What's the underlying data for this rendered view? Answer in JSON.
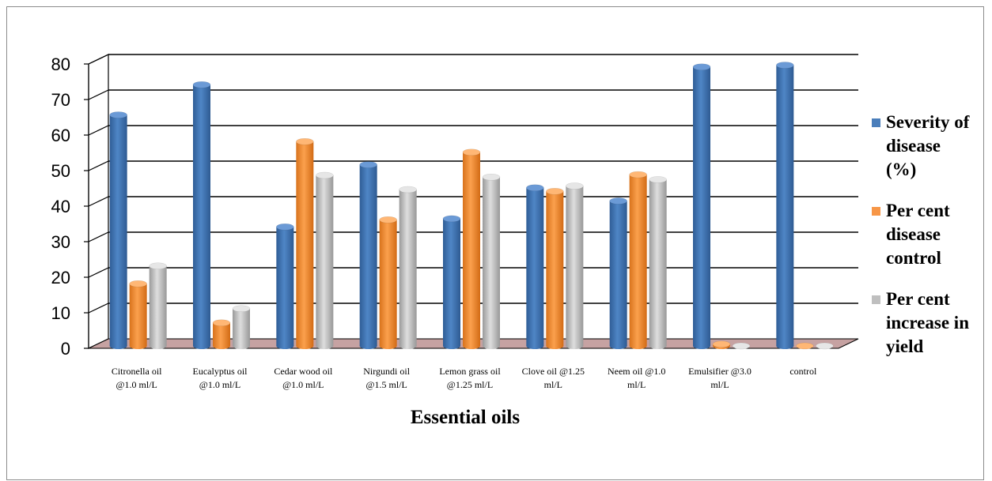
{
  "chart_data": {
    "type": "bar",
    "title": "",
    "xlabel": "Essential oils",
    "ylabel": "",
    "ylim": [
      0,
      80
    ],
    "yticks": [
      "0",
      "10",
      "20",
      "30",
      "40",
      "50",
      "60",
      "70",
      "80"
    ],
    "grid": true,
    "legend_position": "right",
    "categories": [
      [
        "Citronella oil",
        "@1.0 ml/L"
      ],
      [
        "Eucalyptus oil",
        "@1.0 ml/L"
      ],
      [
        "Cedar wood oil",
        "@1.0 ml/L"
      ],
      [
        "Nirgundi oil",
        "@1.5 ml/L"
      ],
      [
        "Lemon grass oil",
        "@1.25 ml/L"
      ],
      [
        "Clove oil @1.25",
        "ml/L"
      ],
      [
        "Neem oil @1.0",
        "ml/L"
      ],
      [
        "Emulsifier @3.0",
        "ml/L"
      ],
      [
        "control",
        ""
      ]
    ],
    "series": [
      {
        "name": "Severity of disease (%)",
        "legend_lines": [
          "Severity of",
          "disease",
          "(%)"
        ],
        "color": "#4a7ebb",
        "values": [
          65,
          73.5,
          33.5,
          51,
          35.8,
          44.5,
          40.8,
          78.5,
          79
        ]
      },
      {
        "name": "Per cent disease control",
        "legend_lines": [
          "Per cent",
          "disease",
          "control"
        ],
        "color": "#f79646",
        "values": [
          17.5,
          6.5,
          57.5,
          35.5,
          54.5,
          43.5,
          48.2,
          0.5,
          0
        ]
      },
      {
        "name": "Per cent increase in yield",
        "legend_lines": [
          "Per cent",
          "increase in",
          "yield"
        ],
        "color": "#bfbfbf",
        "values": [
          22.5,
          10.5,
          48,
          44,
          47.5,
          45,
          46.8,
          0,
          0
        ]
      }
    ]
  }
}
